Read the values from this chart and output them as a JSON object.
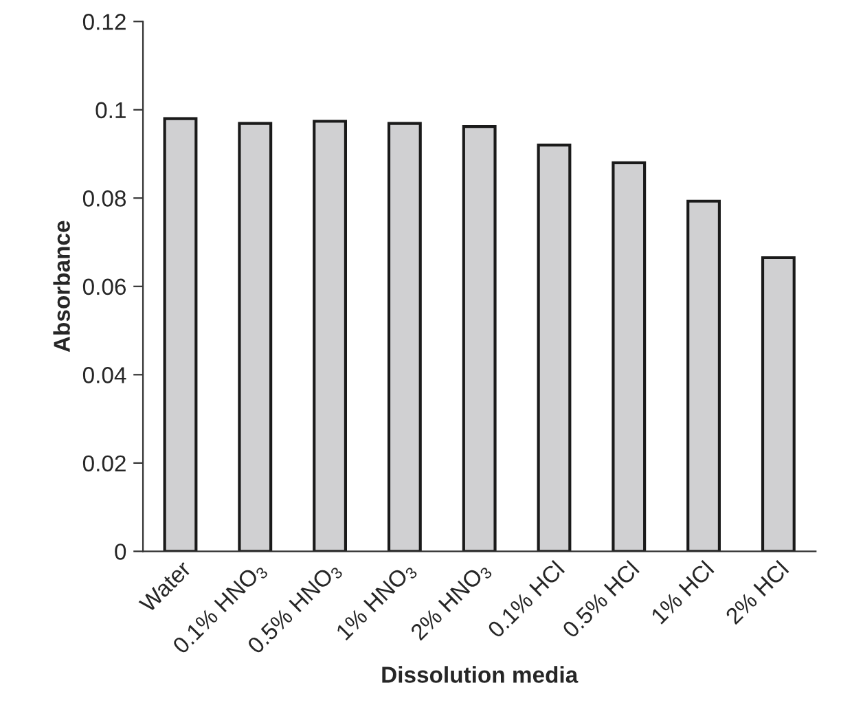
{
  "chart_data": {
    "type": "bar",
    "xlabel": "Dissolution media",
    "ylabel": "Absorbance",
    "categories": [
      "Water",
      "0.1% HNO$_{3}$",
      "0.5% HNO$_{3}$",
      "1% HNO$_{3}$",
      "2% HNO$_{3}$",
      "0.1% HCl",
      "0.5% HCl",
      "1% HCl",
      "2% HCl"
    ],
    "values": [
      0.098,
      0.0969,
      0.0974,
      0.0969,
      0.0962,
      0.092,
      0.088,
      0.0793,
      0.0665
    ],
    "color": "#d0d0d2",
    "ylim": [
      0,
      0.12
    ],
    "yticks": [
      0,
      0.02,
      0.04,
      0.06,
      0.08,
      0.1,
      0.12
    ],
    "grid": false
  }
}
